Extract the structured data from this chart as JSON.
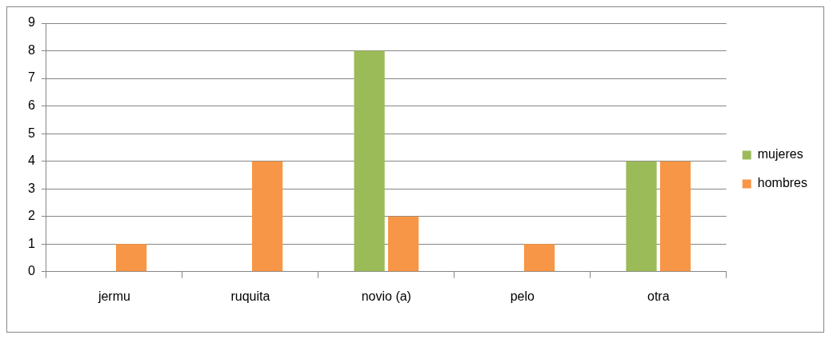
{
  "chart_data": {
    "type": "bar",
    "categories": [
      "jermu",
      "ruquita",
      "novio (a)",
      "pelo",
      "otra"
    ],
    "series": [
      {
        "name": "mujeres",
        "color": "#9bbb59",
        "values": [
          0,
          0,
          8,
          0,
          4
        ]
      },
      {
        "name": "hombres",
        "color": "#f79646",
        "values": [
          1,
          4,
          2,
          1,
          4
        ]
      }
    ],
    "ylim": [
      0,
      9
    ],
    "yticks": [
      0,
      1,
      2,
      3,
      4,
      5,
      6,
      7,
      8,
      9
    ],
    "grid": "y",
    "legend": "right"
  }
}
